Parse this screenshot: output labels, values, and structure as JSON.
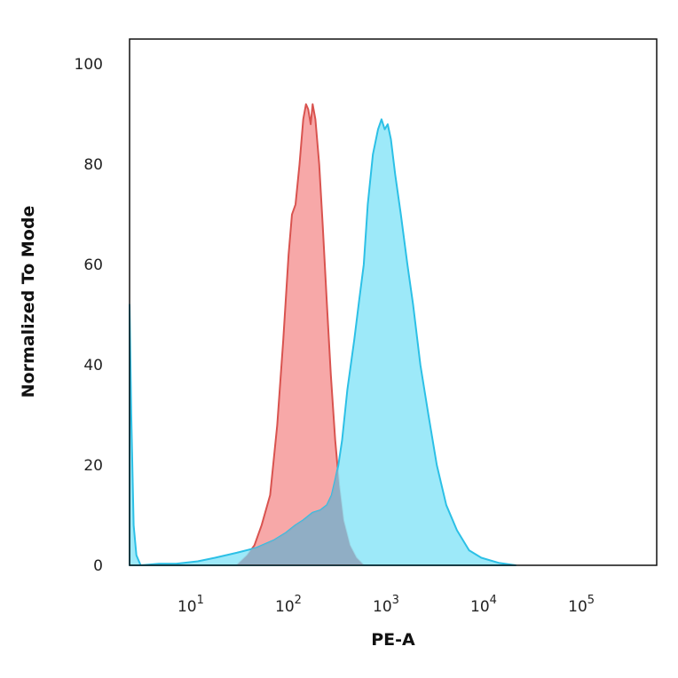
{
  "chart_data": {
    "type": "area",
    "xlabel": "PE-A",
    "ylabel": "Normalized To Mode",
    "xscale": "log",
    "xlim": [
      2,
      500000
    ],
    "ylim": [
      0,
      105
    ],
    "yticks": [
      {
        "value": 0,
        "label": "0"
      },
      {
        "value": 20,
        "label": "20"
      },
      {
        "value": 40,
        "label": "40"
      },
      {
        "value": 60,
        "label": "60"
      },
      {
        "value": 80,
        "label": "80"
      },
      {
        "value": 100,
        "label": "100"
      }
    ],
    "xticks": [
      {
        "value": 10,
        "base": "10",
        "exp": "1"
      },
      {
        "value": 100,
        "base": "10",
        "exp": "2"
      },
      {
        "value": 1000,
        "base": "10",
        "exp": "3"
      },
      {
        "value": 10000,
        "base": "10",
        "exp": "4"
      },
      {
        "value": 100000,
        "base": "10",
        "exp": "5"
      }
    ],
    "grid": false,
    "legend": "none",
    "series": [
      {
        "color": "#f7a3a3",
        "stroke": "#d9534f",
        "points": [
          [
            25,
            0
          ],
          [
            32,
            2
          ],
          [
            38,
            4
          ],
          [
            45,
            8
          ],
          [
            55,
            14
          ],
          [
            65,
            28
          ],
          [
            75,
            45
          ],
          [
            85,
            62
          ],
          [
            92,
            70
          ],
          [
            100,
            72
          ],
          [
            110,
            80
          ],
          [
            120,
            89
          ],
          [
            128,
            92
          ],
          [
            135,
            91
          ],
          [
            143,
            88
          ],
          [
            150,
            92
          ],
          [
            160,
            89
          ],
          [
            175,
            80
          ],
          [
            190,
            68
          ],
          [
            210,
            52
          ],
          [
            230,
            38
          ],
          [
            255,
            25
          ],
          [
            280,
            16
          ],
          [
            310,
            9
          ],
          [
            360,
            4
          ],
          [
            420,
            1.5
          ],
          [
            500,
            0
          ]
        ]
      },
      {
        "color": "#90e6f8",
        "stroke": "#2cc0e6",
        "points": [
          [
            2,
            52
          ],
          [
            2.08,
            30
          ],
          [
            2.2,
            8
          ],
          [
            2.35,
            2
          ],
          [
            2.6,
            0
          ],
          [
            4,
            0.3
          ],
          [
            6,
            0.3
          ],
          [
            10,
            0.8
          ],
          [
            15,
            1.5
          ],
          [
            25,
            2.5
          ],
          [
            40,
            3.5
          ],
          [
            60,
            5
          ],
          [
            80,
            6.5
          ],
          [
            100,
            8
          ],
          [
            120,
            9
          ],
          [
            150,
            10.5
          ],
          [
            180,
            11
          ],
          [
            210,
            12
          ],
          [
            235,
            14
          ],
          [
            255,
            17
          ],
          [
            275,
            20
          ],
          [
            300,
            25
          ],
          [
            340,
            35
          ],
          [
            400,
            45
          ],
          [
            450,
            53
          ],
          [
            500,
            60
          ],
          [
            550,
            72
          ],
          [
            620,
            82
          ],
          [
            700,
            87
          ],
          [
            760,
            89
          ],
          [
            820,
            87
          ],
          [
            880,
            88
          ],
          [
            950,
            85
          ],
          [
            1050,
            78
          ],
          [
            1200,
            70
          ],
          [
            1400,
            60
          ],
          [
            1600,
            52
          ],
          [
            1900,
            40
          ],
          [
            2300,
            30
          ],
          [
            2800,
            20
          ],
          [
            3500,
            12
          ],
          [
            4500,
            7
          ],
          [
            6000,
            3
          ],
          [
            8000,
            1.5
          ],
          [
            12000,
            0.5
          ],
          [
            18000,
            0
          ]
        ]
      }
    ]
  }
}
